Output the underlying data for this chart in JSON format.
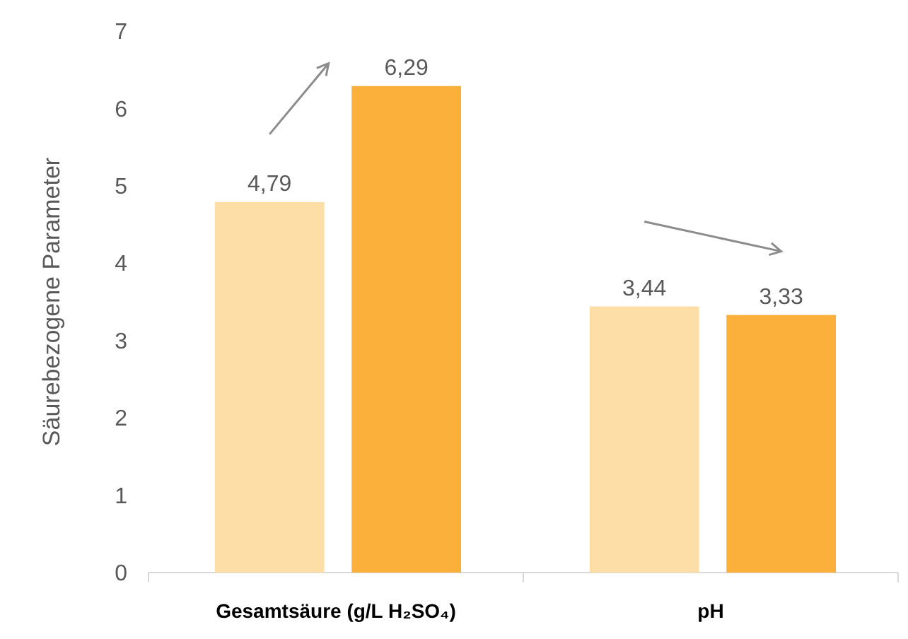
{
  "chart_data": {
    "type": "bar",
    "ylabel": "Säurebezogene Parameter",
    "categories": [
      "Gesamtsäure (g/L H₂SO₄)",
      "pH"
    ],
    "series": [
      {
        "color": "#fddea6",
        "values": [
          4.79,
          3.44
        ],
        "value_labels": [
          "4,79",
          "3,44"
        ]
      },
      {
        "color": "#fbb03b",
        "values": [
          6.29,
          3.33
        ],
        "value_labels": [
          "6,29",
          "3,33"
        ]
      }
    ],
    "ylim": [
      0,
      7
    ],
    "yticks": [
      0,
      1,
      2,
      3,
      4,
      5,
      6,
      7
    ]
  }
}
